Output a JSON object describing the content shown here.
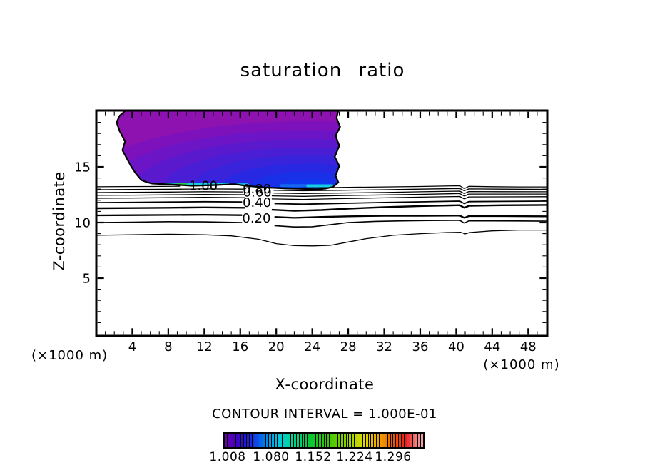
{
  "chart_data": {
    "type": "contour",
    "title": "saturation ratio",
    "xlabel": "X-coordinate",
    "ylabel": "Z-coordinate",
    "x_unit_left": "(×1000 m)",
    "x_unit_right": "(×1000 m)",
    "contour_interval_text": "CONTOUR INTERVAL = 1.000E-01",
    "xlim": [
      0,
      50.1
    ],
    "zlim": [
      -0.2,
      20.1
    ],
    "x_major_ticks": [
      4,
      8,
      12,
      16,
      20,
      24,
      28,
      32,
      36,
      40,
      44,
      48
    ],
    "z_major_ticks": [
      5,
      10,
      15
    ],
    "grid": false,
    "contour_labels": [
      {
        "text": "1.00",
        "x": 11.9,
        "z": 13.3
      },
      {
        "text": "0.80",
        "x": 17.85,
        "z": 13.0
      },
      {
        "text": "0.60",
        "x": 17.9,
        "z": 12.72
      },
      {
        "text": "0.40",
        "x": 17.85,
        "z": 11.8
      },
      {
        "text": "0.20",
        "x": 17.8,
        "z": 10.4
      }
    ],
    "filled_region": {
      "base_color": "#8e12af",
      "center": [
        23.4,
        13.1
      ],
      "outline": [
        [
          3.25,
          20.06
        ],
        [
          26.88,
          20.06
        ],
        [
          26.7,
          19.4
        ],
        [
          27.1,
          18.6
        ],
        [
          26.6,
          17.8
        ],
        [
          27.0,
          16.9
        ],
        [
          26.5,
          15.9
        ],
        [
          27.0,
          15.1
        ],
        [
          26.6,
          14.2
        ],
        [
          26.9,
          13.6
        ],
        [
          26.3,
          13.2
        ],
        [
          25.5,
          13.05
        ],
        [
          24.5,
          12.98
        ],
        [
          23.3,
          13.02
        ],
        [
          21.0,
          13.06
        ],
        [
          18.6,
          13.16
        ],
        [
          16.6,
          13.3
        ],
        [
          15.4,
          13.45
        ],
        [
          13.0,
          13.36
        ],
        [
          10.6,
          13.3
        ],
        [
          8.2,
          13.42
        ],
        [
          6.2,
          13.5
        ],
        [
          5.6,
          13.62
        ],
        [
          5.0,
          13.82
        ],
        [
          4.4,
          14.4
        ],
        [
          3.9,
          15.0
        ],
        [
          3.5,
          15.6
        ],
        [
          2.9,
          16.5
        ],
        [
          3.2,
          17.3
        ],
        [
          2.6,
          18.2
        ],
        [
          2.25,
          19.0
        ],
        [
          2.6,
          19.6
        ]
      ],
      "bands": [
        [
          25.5,
          6.0,
          "#7d12bc"
        ],
        [
          22.3,
          5.2,
          "#6c15c6"
        ],
        [
          19.2,
          4.4,
          "#5b19cd"
        ],
        [
          16.0,
          3.65,
          "#4a1ed4"
        ],
        [
          12.8,
          2.95,
          "#3923db"
        ],
        [
          9.6,
          2.2,
          "#2828e2"
        ],
        [
          6.4,
          1.5,
          "#1a2fe8"
        ],
        [
          3.4,
          0.8,
          "#0d38ee"
        ]
      ],
      "streaks": [
        [
          6.2,
          9.0,
          13.42,
          5,
          "#14c8cc"
        ],
        [
          9.0,
          10.4,
          13.44,
          4,
          "#2cc254"
        ],
        [
          10.4,
          14.6,
          13.42,
          5,
          "#12cfe6"
        ],
        [
          15.3,
          16.8,
          13.38,
          4,
          "#12cfe6"
        ],
        [
          20.6,
          23.5,
          13.32,
          4,
          "#1568ee"
        ],
        [
          23.5,
          26.2,
          13.3,
          4,
          "#16cde6"
        ]
      ]
    },
    "contour_lines": [
      {
        "w": 1.3,
        "segs": [
          [
            [
              0,
              13.21
            ],
            [
              3,
              13.23
            ],
            [
              6,
              13.24
            ],
            [
              9.3,
              13.26
            ]
          ],
          [
            [
              19.7,
              13.15
            ],
            [
              22,
              13.1
            ],
            [
              25,
              13.12
            ],
            [
              28,
              13.16
            ],
            [
              32,
              13.2
            ],
            [
              36,
              13.24
            ],
            [
              40.4,
              13.3
            ],
            [
              40.9,
              13.05
            ],
            [
              41.4,
              13.25
            ],
            [
              44,
              13.22
            ],
            [
              47,
              13.2
            ],
            [
              50,
              13.2
            ]
          ]
        ]
      },
      {
        "w": 1.3,
        "segs": [
          [
            [
              0,
              12.95
            ],
            [
              4,
              12.97
            ],
            [
              8,
              12.99
            ],
            [
              12,
              13.02
            ],
            [
              16.3,
              13.0
            ]
          ],
          [
            [
              19.7,
              12.9
            ],
            [
              23,
              12.85
            ],
            [
              27,
              12.9
            ],
            [
              32,
              12.95
            ],
            [
              36,
              13.0
            ],
            [
              40.4,
              13.06
            ],
            [
              40.9,
              12.85
            ],
            [
              41.4,
              13.02
            ],
            [
              45,
              13.0
            ],
            [
              50,
              12.98
            ]
          ]
        ]
      },
      {
        "w": 1.3,
        "segs": [
          [
            [
              0,
              12.69
            ],
            [
              4,
              12.71
            ],
            [
              8,
              12.74
            ],
            [
              12,
              12.77
            ],
            [
              16.3,
              12.75
            ]
          ],
          [
            [
              19.7,
              12.65
            ],
            [
              23,
              12.6
            ],
            [
              27,
              12.65
            ],
            [
              32,
              12.7
            ],
            [
              36,
              12.76
            ],
            [
              40.4,
              12.82
            ],
            [
              40.9,
              12.6
            ],
            [
              41.4,
              12.78
            ],
            [
              45,
              12.77
            ],
            [
              50,
              12.76
            ]
          ]
        ]
      },
      {
        "w": 1.3,
        "segs": [
          [
            [
              0,
              12.44
            ],
            [
              4,
              12.46
            ],
            [
              8,
              12.49
            ],
            [
              12,
              12.52
            ],
            [
              16.5,
              12.5
            ]
          ],
          [
            [
              19.5,
              12.4
            ],
            [
              23,
              12.35
            ],
            [
              27,
              12.42
            ],
            [
              32,
              12.48
            ],
            [
              36,
              12.53
            ],
            [
              40.4,
              12.6
            ],
            [
              40.9,
              12.38
            ],
            [
              41.4,
              12.56
            ],
            [
              45,
              12.56
            ],
            [
              50,
              12.56
            ]
          ]
        ]
      },
      {
        "w": 1.3,
        "segs": [
          [
            [
              0,
              12.18
            ],
            [
              4,
              12.2
            ],
            [
              8,
              12.23
            ],
            [
              12,
              12.26
            ],
            [
              16.5,
              12.24
            ]
          ],
          [
            [
              19.5,
              12.12
            ],
            [
              23,
              12.08
            ],
            [
              27,
              12.15
            ],
            [
              32,
              12.22
            ],
            [
              36,
              12.28
            ],
            [
              40.4,
              12.34
            ],
            [
              40.9,
              12.12
            ],
            [
              41.4,
              12.3
            ],
            [
              45,
              12.31
            ],
            [
              50,
              12.32
            ]
          ]
        ]
      },
      {
        "w": 1.8,
        "segs": [
          [
            [
              0,
              11.79
            ],
            [
              4,
              11.81
            ],
            [
              8,
              11.84
            ],
            [
              12,
              11.87
            ],
            [
              16.2,
              11.85
            ]
          ],
          [
            [
              19.8,
              11.7
            ],
            [
              23,
              11.65
            ],
            [
              27,
              11.72
            ],
            [
              32,
              11.8
            ],
            [
              36,
              11.86
            ],
            [
              40.4,
              11.92
            ],
            [
              40.9,
              11.7
            ],
            [
              41.4,
              11.88
            ],
            [
              45,
              11.9
            ],
            [
              50,
              11.92
            ]
          ]
        ]
      },
      {
        "w": 2.4,
        "segs": [
          [
            [
              0,
              11.28
            ],
            [
              4,
              11.3
            ],
            [
              8,
              11.33
            ],
            [
              12,
              11.36
            ],
            [
              16.5,
              11.33
            ]
          ],
          [
            [
              19.5,
              11.15
            ],
            [
              22,
              11.05
            ],
            [
              25,
              11.12
            ],
            [
              28,
              11.25
            ],
            [
              32,
              11.38
            ],
            [
              36,
              11.48
            ],
            [
              40.4,
              11.56
            ],
            [
              40.9,
              11.32
            ],
            [
              41.4,
              11.5
            ],
            [
              45,
              11.55
            ],
            [
              50,
              11.58
            ]
          ]
        ]
      },
      {
        "w": 2.3,
        "segs": [
          [
            [
              0,
              10.64
            ],
            [
              4,
              10.66
            ],
            [
              8,
              10.68
            ],
            [
              12,
              10.7
            ],
            [
              16.2,
              10.66
            ]
          ],
          [
            [
              19.8,
              10.5
            ],
            [
              22,
              10.42
            ],
            [
              25,
              10.5
            ],
            [
              28,
              10.56
            ],
            [
              32,
              10.6
            ],
            [
              36,
              10.6
            ],
            [
              40.4,
              10.62
            ],
            [
              40.9,
              10.42
            ],
            [
              41.4,
              10.58
            ],
            [
              45,
              10.58
            ],
            [
              50,
              10.56
            ]
          ]
        ]
      },
      {
        "w": 1.6,
        "segs": [
          [
            [
              0,
              10.0
            ],
            [
              4,
              10.03
            ],
            [
              8,
              10.08
            ],
            [
              12,
              10.06
            ],
            [
              16.2,
              10.0
            ]
          ],
          [
            [
              19.8,
              9.72
            ],
            [
              22,
              9.6
            ],
            [
              24,
              9.62
            ],
            [
              26,
              9.8
            ],
            [
              28,
              10.0
            ],
            [
              31,
              10.1
            ],
            [
              34,
              10.15
            ],
            [
              37,
              10.18
            ],
            [
              40.4,
              10.2
            ],
            [
              40.9,
              9.95
            ],
            [
              41.4,
              10.15
            ],
            [
              44,
              10.15
            ],
            [
              47,
              10.14
            ],
            [
              50,
              10.12
            ]
          ]
        ]
      },
      {
        "w": 1.3,
        "segs": [
          [
            [
              0,
              8.85
            ],
            [
              4,
              8.9
            ],
            [
              8,
              8.95
            ],
            [
              12,
              8.9
            ],
            [
              15,
              8.8
            ],
            [
              18,
              8.5
            ],
            [
              20,
              8.1
            ],
            [
              22,
              7.92
            ],
            [
              24,
              7.9
            ],
            [
              26,
              7.95
            ],
            [
              28,
              8.25
            ],
            [
              30,
              8.55
            ],
            [
              33,
              8.85
            ],
            [
              36,
              9.0
            ],
            [
              39,
              9.1
            ],
            [
              40.5,
              9.12
            ],
            [
              41,
              8.98
            ],
            [
              41.5,
              9.1
            ],
            [
              44,
              9.25
            ],
            [
              47,
              9.32
            ],
            [
              50,
              9.32
            ]
          ]
        ]
      }
    ],
    "colorbar": {
      "labels": [
        "1.008",
        "1.080",
        "1.152",
        "1.224",
        "1.296"
      ],
      "n_cells": 72,
      "stops": [
        [
          0,
          "#6a00aa"
        ],
        [
          0.06,
          "#4400c0"
        ],
        [
          0.12,
          "#1b1be0"
        ],
        [
          0.2,
          "#0077e8"
        ],
        [
          0.27,
          "#00c8e0"
        ],
        [
          0.34,
          "#00d49a"
        ],
        [
          0.42,
          "#00c83a"
        ],
        [
          0.52,
          "#38c800"
        ],
        [
          0.62,
          "#96d200"
        ],
        [
          0.7,
          "#dcd800"
        ],
        [
          0.78,
          "#f0a000"
        ],
        [
          0.85,
          "#f05800"
        ],
        [
          0.91,
          "#ea1c1c"
        ],
        [
          0.96,
          "#f07878"
        ],
        [
          1,
          "#f2a2b0"
        ]
      ]
    }
  }
}
